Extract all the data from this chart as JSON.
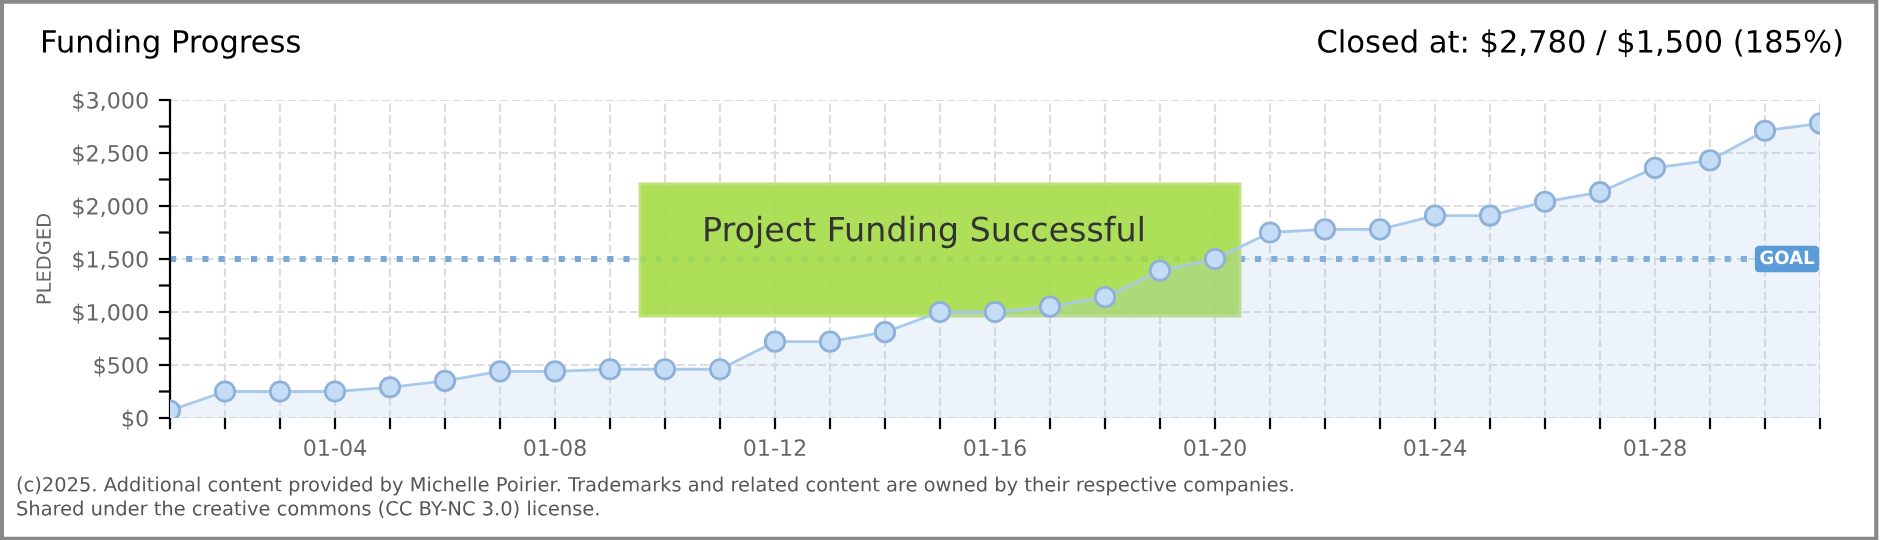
{
  "chart_data": {
    "type": "area",
    "title": "Funding Progress",
    "subtitle": "Closed at: $2,780 / $1,500 (185%)",
    "ylabel": "PLEDGED",
    "categories": [
      null,
      null,
      null,
      "01-04",
      null,
      null,
      null,
      "01-08",
      null,
      null,
      null,
      "01-12",
      null,
      null,
      null,
      "01-16",
      null,
      null,
      null,
      "01-20",
      null,
      null,
      null,
      "01-24",
      null,
      null,
      null,
      "01-28",
      null,
      null,
      null
    ],
    "series": [
      {
        "color": "#a9c9ec",
        "values": [
          70,
          250,
          250,
          250,
          290,
          350,
          440,
          440,
          460,
          460,
          460,
          720,
          720,
          810,
          1000,
          1000,
          1050,
          1140,
          1390,
          1500,
          1750,
          1780,
          1780,
          1910,
          1910,
          2040,
          2130,
          2360,
          2430,
          2710,
          2780
        ]
      }
    ],
    "ylim": [
      0,
      3000
    ],
    "yticks": [
      {
        "value": 0,
        "label": "$0"
      },
      {
        "value": 250,
        "label": null
      },
      {
        "value": 500,
        "label": "$500"
      },
      {
        "value": 750,
        "label": null
      },
      {
        "value": 1000,
        "label": "$1,000"
      },
      {
        "value": 1250,
        "label": null
      },
      {
        "value": 1500,
        "label": "$1,500"
      },
      {
        "value": 1750,
        "label": null
      },
      {
        "value": 2000,
        "label": "$2,000"
      },
      {
        "value": 2250,
        "label": null
      },
      {
        "value": 2500,
        "label": "$2,500"
      },
      {
        "value": 2750,
        "label": null
      },
      {
        "value": 3000,
        "label": "$3,000"
      }
    ],
    "ref_lines": [
      {
        "axis": "y",
        "value": 1500,
        "label": "GOAL",
        "color": "#7aa6d8",
        "line_style": "dotted"
      }
    ],
    "annotations": [
      "Project Funding Successful",
      "(c)2025. Additional content provided by Michelle Poirier. Trademarks and related content are owned by their respective companies.",
      "Shared under the creative commons (CC BY-NC 3.0) license."
    ],
    "grid": true,
    "marker": "circle",
    "legend": false
  }
}
